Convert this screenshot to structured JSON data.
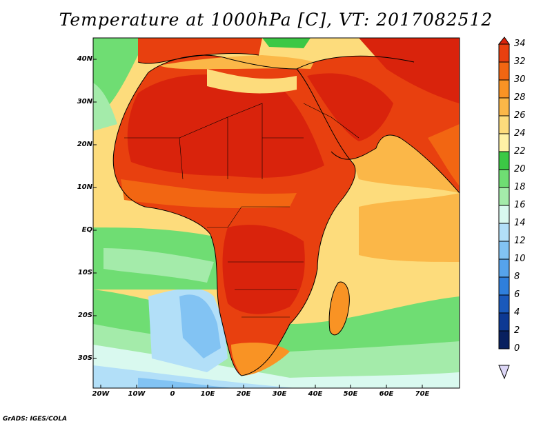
{
  "title": "Temperature at 1000hPa [C], VT: 2017082512",
  "credit": "GrADS: IGES/COLA",
  "lat_labels": [
    "40N",
    "30N",
    "20N",
    "10N",
    "EQ",
    "10S",
    "20S",
    "30S"
  ],
  "lon_labels": [
    "20W",
    "10W",
    "0",
    "10E",
    "20E",
    "30E",
    "40E",
    "50E",
    "60E",
    "70E"
  ],
  "colorbar": {
    "labels": [
      "34",
      "32",
      "30",
      "28",
      "26",
      "24",
      "22",
      "20",
      "18",
      "16",
      "14",
      "12",
      "10",
      "8",
      "6",
      "4",
      "2",
      "0"
    ],
    "colors": [
      "#d9230c",
      "#e8400f",
      "#f26612",
      "#f99324",
      "#fbb748",
      "#fddc7c",
      "#fff2a6",
      "#3cc845",
      "#6fdd73",
      "#a4ebaa",
      "#d9f9ef",
      "#b2dff8",
      "#82c3f3",
      "#56a3eb",
      "#2f7fdc",
      "#1a59bb",
      "#0d3993",
      "#08205f",
      "#dcd6f6"
    ]
  },
  "map": {
    "domain": "Africa and surrounding oceans",
    "lon_range": [
      -23,
      80
    ],
    "lat_range": [
      -36,
      44
    ],
    "field": "temperature at 1000hPa",
    "units": "C"
  }
}
